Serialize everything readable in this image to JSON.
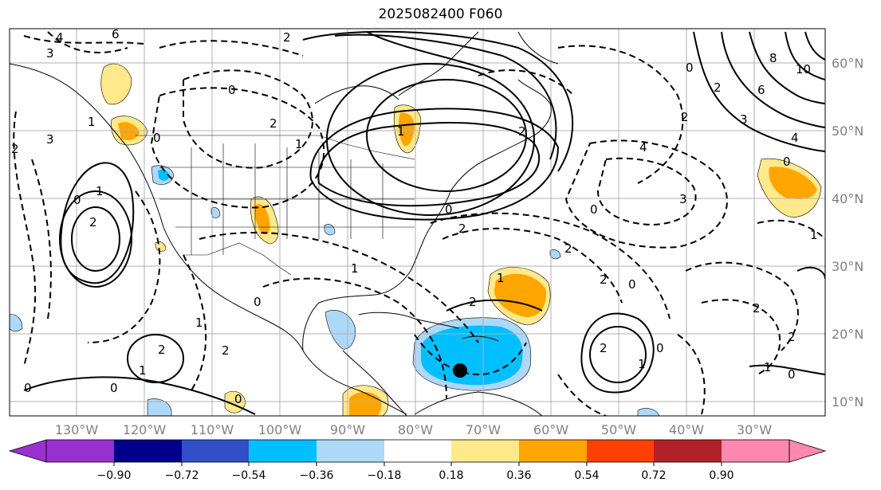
{
  "title": "2025082400 F060",
  "lat_labels": [
    "60°N",
    "50°N",
    "40°N",
    "30°N",
    "20°N",
    "10°N"
  ],
  "lon_labels": [
    "130°W",
    "120°W",
    "110°W",
    "100°W",
    "90°W",
    "80°W",
    "70°W",
    "60°W",
    "50°W",
    "40°W",
    "30°W"
  ],
  "contour_labels": {
    "c4": "4",
    "c6": "6",
    "c3": "3",
    "c2": "2",
    "c1": "1",
    "c0": "0",
    "c8": "8",
    "c10": "10"
  },
  "colorbar": {
    "tick_labels": [
      "−0.90",
      "−0.72",
      "−0.54",
      "−0.36",
      "−0.18",
      "0.18",
      "0.36",
      "0.54",
      "0.72",
      "0.90"
    ],
    "colors": [
      "#9b30d0",
      "#00008b",
      "#3050c8",
      "#00bfff",
      "#add8f8",
      "#ffffff",
      "#ffe98a",
      "#ffa500",
      "#ff4000",
      "#b0222a",
      "#ff88b0"
    ]
  },
  "marker": "storm-center-dot"
}
